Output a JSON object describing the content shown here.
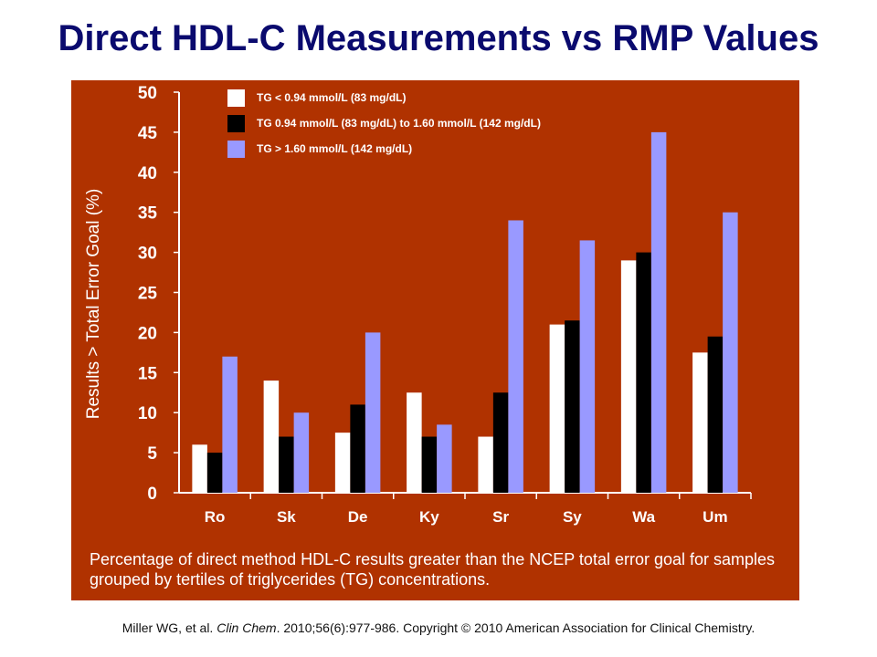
{
  "slide": {
    "title": "Direct HDL-C Measurements vs RMP Values",
    "caption": "Percentage of direct method HDL-C results greater than the NCEP total error goal for samples grouped by tertiles of triglycerides (TG) concentrations.",
    "citation_pre": "Miller WG, et al. ",
    "citation_journal": "Clin Chem",
    "citation_post": ". 2010;56(6):977-986. Copyright © 2010 American Association for Clinical Chemistry."
  },
  "colors": {
    "panel": "#b03200",
    "title": "#0a0a6e",
    "low": "#ffffff",
    "mid": "#000000",
    "high": "#9999ff"
  },
  "chart_data": {
    "type": "bar",
    "ylabel": "Results > Total Error Goal (%)",
    "xlabel": "",
    "ylim": [
      0,
      50
    ],
    "yticks": [
      0,
      5,
      10,
      15,
      20,
      25,
      30,
      35,
      40,
      45,
      50
    ],
    "categories": [
      "Ro",
      "Sk",
      "De",
      "Ky",
      "Sr",
      "Sy",
      "Wa",
      "Um"
    ],
    "legend_position": "top-left",
    "series": [
      {
        "name": "TG < 0.94 mmol/L (83 mg/dL)",
        "color": "#ffffff",
        "values": [
          6,
          14,
          7.5,
          12.5,
          7,
          21,
          29,
          17.5
        ]
      },
      {
        "name": "TG 0.94 mmol/L (83 mg/dL) to 1.60 mmol/L (142 mg/dL)",
        "color": "#000000",
        "values": [
          5,
          7,
          11,
          7,
          12.5,
          21.5,
          30,
          19.5
        ]
      },
      {
        "name": "TG > 1.60 mmol/L (142 mg/dL)",
        "color": "#9999ff",
        "values": [
          17,
          10,
          20,
          8.5,
          34,
          31.5,
          45,
          35
        ]
      }
    ]
  }
}
